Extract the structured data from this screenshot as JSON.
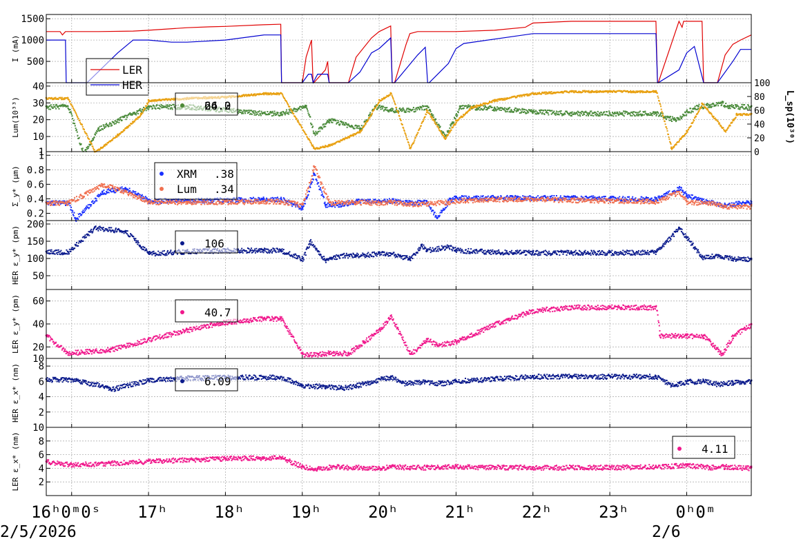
{
  "colors": {
    "ler_red": "#e00000",
    "her_blue": "#0000d0",
    "gold": "#e8a010",
    "green": "#4a8a3a",
    "xrm_blue": "#1a30ff",
    "lum_salmon": "#f07050",
    "navy": "#0a1a8c",
    "magenta": "#f0188c",
    "grid": "#b0b0b0"
  },
  "time_axis": {
    "ticks": [
      {
        "t": 0,
        "label": "16ʰ0ᵐ0ˢ"
      },
      {
        "t": 1,
        "label": "17ʰ"
      },
      {
        "t": 2,
        "label": "18ʰ"
      },
      {
        "t": 3,
        "label": "19ʰ"
      },
      {
        "t": 4,
        "label": "20ʰ"
      },
      {
        "t": 5,
        "label": "21ʰ"
      },
      {
        "t": 6,
        "label": "22ʰ"
      },
      {
        "t": 7,
        "label": "23ʰ"
      },
      {
        "t": 8,
        "label": "0ʰ0ᵐ"
      }
    ],
    "date_left": "2/5/2026",
    "date_right": "2/6",
    "t_range": [
      -0.33,
      8.84
    ]
  },
  "chart_data": [
    {
      "type": "line",
      "ylabel": "I (mA)",
      "yticks": [
        500,
        1000,
        1500
      ],
      "ylim": [
        0,
        1600
      ],
      "legend": [
        {
          "name": "LER",
          "color": "#e00000"
        },
        {
          "name": "HER",
          "color": "#0000d0"
        }
      ],
      "series": [
        {
          "name": "LER",
          "color": "#e00000",
          "x": [
            -0.33,
            -0.15,
            -0.12,
            -0.08,
            0.3,
            0.35,
            0.8,
            1.0,
            1.5,
            1.8,
            2.0,
            2.5,
            2.7,
            2.72,
            2.73,
            3.0,
            3.05,
            3.12,
            3.14,
            3.15,
            3.3,
            3.33,
            3.35,
            3.36,
            3.6,
            3.7,
            3.9,
            4.0,
            4.15,
            4.17,
            4.2,
            4.35,
            4.4,
            4.5,
            4.6,
            4.63,
            4.65,
            5.0,
            5.5,
            5.9,
            6.0,
            6.5,
            7.0,
            7.5,
            7.6,
            7.62,
            7.63,
            7.9,
            7.94,
            7.96,
            8.2,
            8.22,
            8.4,
            8.5,
            8.6,
            8.7,
            8.84
          ],
          "y": [
            1200,
            1200,
            1120,
            1200,
            1200,
            1200,
            1210,
            1230,
            1290,
            1310,
            1320,
            1360,
            1370,
            1370,
            0,
            0,
            600,
            1000,
            0,
            0,
            300,
            500,
            0,
            0,
            0,
            600,
            1050,
            1200,
            1330,
            0,
            0,
            900,
            1150,
            1200,
            1200,
            1200,
            1200,
            1200,
            1230,
            1300,
            1400,
            1440,
            1440,
            1440,
            1440,
            0,
            0,
            1440,
            1300,
            1440,
            1440,
            0,
            0,
            650,
            900,
            1000,
            1120
          ]
        },
        {
          "name": "HER",
          "color": "#0000d0",
          "x": [
            -0.33,
            -0.08,
            -0.07,
            0.2,
            0.6,
            0.8,
            1.0,
            1.3,
            1.5,
            2.0,
            2.5,
            2.72,
            2.73,
            3.0,
            3.08,
            3.12,
            3.14,
            3.2,
            3.33,
            3.35,
            3.6,
            3.75,
            3.9,
            4.0,
            4.15,
            4.17,
            4.2,
            4.5,
            4.6,
            4.63,
            4.65,
            4.9,
            5.0,
            5.1,
            6.0,
            7.0,
            7.6,
            7.62,
            7.63,
            7.9,
            8.0,
            8.1,
            8.22,
            8.4,
            8.6,
            8.7,
            8.84
          ],
          "y": [
            1000,
            1000,
            0,
            0,
            700,
            1000,
            1000,
            950,
            950,
            1000,
            1120,
            1120,
            0,
            0,
            200,
            200,
            0,
            200,
            200,
            0,
            0,
            250,
            700,
            800,
            1050,
            0,
            0,
            650,
            830,
            0,
            0,
            450,
            800,
            920,
            1150,
            1150,
            1150,
            0,
            0,
            300,
            700,
            850,
            0,
            0,
            500,
            780,
            780
          ]
        }
      ]
    },
    {
      "type": "scatter",
      "ylabel": "Lum(10³³)",
      "ylabel_right": "L_sp(10³⁰)",
      "yticks": [
        1,
        10,
        20,
        30,
        40
      ],
      "ylim": [
        1,
        42
      ],
      "yticks_right": [
        0,
        20,
        40,
        60,
        80,
        100
      ],
      "ylim_right": [
        0,
        100
      ],
      "legend": [
        {
          "name": "",
          "value": "66.0",
          "color": "#e8a010"
        },
        {
          "name": "",
          "value": "24.2",
          "color": "#4a8a3a"
        }
      ],
      "series": [
        {
          "name": "",
          "color": "#4a8a3a",
          "axis": "left",
          "x": [
            -0.33,
            -0.05,
            0.15,
            0.35,
            0.6,
            1.0,
            1.5,
            2.0,
            2.5,
            2.72,
            3.05,
            3.15,
            3.35,
            3.75,
            3.95,
            4.15,
            4.4,
            4.62,
            4.85,
            5.05,
            5.5,
            6.0,
            6.5,
            7.0,
            7.6,
            7.85,
            8.0,
            8.15,
            8.45,
            8.55,
            8.84
          ],
          "y": [
            28,
            28,
            0,
            15,
            20,
            28,
            28,
            26,
            24,
            24,
            28,
            12,
            20,
            15,
            28,
            26,
            26,
            28,
            10,
            28,
            27,
            25,
            24,
            24,
            24,
            20,
            25,
            28,
            30,
            28,
            28
          ]
        },
        {
          "name": "",
          "color": "#e8a010",
          "axis": "right",
          "x": [
            -0.33,
            -0.05,
            0.3,
            0.6,
            0.9,
            1.0,
            1.5,
            2.0,
            2.5,
            2.72,
            3.15,
            3.35,
            3.75,
            4.0,
            4.15,
            4.4,
            4.62,
            4.85,
            5.0,
            5.2,
            5.5,
            6.0,
            6.5,
            7.0,
            7.6,
            7.8,
            8.0,
            8.2,
            8.5,
            8.65,
            8.84
          ],
          "y": [
            78,
            78,
            0,
            25,
            55,
            75,
            78,
            80,
            85,
            85,
            5,
            10,
            30,
            75,
            85,
            5,
            60,
            20,
            45,
            65,
            75,
            85,
            88,
            88,
            88,
            5,
            30,
            70,
            30,
            55,
            55
          ]
        }
      ]
    },
    {
      "type": "scatter",
      "ylabel": "Σ_y* (μm)",
      "yticks": [
        0.2,
        0.4,
        0.6,
        0.8,
        1.0
      ],
      "ylim": [
        0.1,
        1.05
      ],
      "legend": [
        {
          "name": "XRM",
          "value": ".38",
          "color": "#1a30ff"
        },
        {
          "name": "Lum",
          "value": ".34",
          "color": "#f07050"
        }
      ],
      "series": [
        {
          "name": "XRM",
          "color": "#1a30ff",
          "x": [
            -0.33,
            -0.05,
            0.05,
            0.4,
            0.7,
            1.0,
            1.5,
            2.0,
            2.5,
            2.72,
            3.0,
            3.15,
            3.3,
            3.5,
            3.7,
            4.0,
            4.15,
            4.4,
            4.62,
            4.75,
            4.9,
            5.0,
            5.5,
            6.0,
            6.5,
            7.0,
            7.6,
            7.9,
            8.0,
            8.2,
            8.5,
            8.84
          ],
          "y": [
            0.35,
            0.35,
            0.13,
            0.5,
            0.55,
            0.38,
            0.38,
            0.39,
            0.4,
            0.4,
            0.28,
            0.75,
            0.32,
            0.33,
            0.37,
            0.38,
            0.38,
            0.35,
            0.36,
            0.14,
            0.38,
            0.42,
            0.42,
            0.42,
            0.42,
            0.41,
            0.4,
            0.55,
            0.45,
            0.38,
            0.32,
            0.36
          ]
        },
        {
          "name": "Lum",
          "color": "#f07050",
          "x": [
            -0.33,
            -0.05,
            0.4,
            0.7,
            1.0,
            1.5,
            2.0,
            2.5,
            2.72,
            3.0,
            3.15,
            3.35,
            3.7,
            4.0,
            4.15,
            4.4,
            4.62,
            4.9,
            5.0,
            5.5,
            6.0,
            6.5,
            7.0,
            7.6,
            7.9,
            8.0,
            8.3,
            8.5,
            8.84
          ],
          "y": [
            0.35,
            0.35,
            0.6,
            0.5,
            0.36,
            0.36,
            0.36,
            0.37,
            0.37,
            0.32,
            0.85,
            0.35,
            0.36,
            0.35,
            0.36,
            0.33,
            0.34,
            0.36,
            0.38,
            0.4,
            0.4,
            0.39,
            0.38,
            0.37,
            0.5,
            0.36,
            0.35,
            0.3,
            0.3
          ]
        }
      ]
    },
    {
      "type": "scatter",
      "ylabel": "HER ε_y* (pm)",
      "yticks": [
        50,
        100,
        150,
        200
      ],
      "ylim": [
        10,
        210
      ],
      "legend": [
        {
          "name": "",
          "value": "106",
          "color": "#0a1a8c"
        }
      ],
      "series": [
        {
          "name": "",
          "color": "#0a1a8c",
          "x": [
            -0.33,
            -0.05,
            0.3,
            0.7,
            1.0,
            1.5,
            2.0,
            2.5,
            2.72,
            3.0,
            3.1,
            3.3,
            3.5,
            3.7,
            4.0,
            4.15,
            4.4,
            4.55,
            4.62,
            4.9,
            5.0,
            5.5,
            6.0,
            6.5,
            7.0,
            7.6,
            7.9,
            8.0,
            8.2,
            8.4,
            8.6,
            8.84
          ],
          "y": [
            120,
            120,
            190,
            180,
            115,
            122,
            125,
            125,
            125,
            100,
            150,
            95,
            110,
            110,
            115,
            115,
            100,
            140,
            125,
            135,
            125,
            120,
            118,
            118,
            118,
            120,
            190,
            160,
            105,
            110,
            100,
            100
          ]
        }
      ]
    },
    {
      "type": "scatter",
      "ylabel": "LER ε_y* (pm)",
      "yticks": [
        10,
        20,
        40,
        60
      ],
      "ylim": [
        10,
        70
      ],
      "legend": [
        {
          "name": "",
          "value": "40.7",
          "color": "#f0188c"
        }
      ],
      "series": [
        {
          "name": "",
          "color": "#f0188c",
          "x": [
            -0.33,
            -0.05,
            0.5,
            1.0,
            1.5,
            2.0,
            2.5,
            2.72,
            3.0,
            3.2,
            3.35,
            3.6,
            3.8,
            4.0,
            4.15,
            4.4,
            4.62,
            4.75,
            5.0,
            5.5,
            6.0,
            6.5,
            7.0,
            7.6,
            7.65,
            8.0,
            8.22,
            8.45,
            8.6,
            8.84
          ],
          "y": [
            30,
            15,
            18,
            27,
            35,
            42,
            45,
            45,
            14,
            14,
            15,
            15,
            25,
            35,
            47,
            14,
            27,
            22,
            25,
            40,
            52,
            55,
            55,
            55,
            30,
            30,
            30,
            14,
            30,
            40
          ]
        }
      ]
    },
    {
      "type": "scatter",
      "ylabel": "HER ε_x* (nm)",
      "yticks": [
        2,
        4,
        6,
        8
      ],
      "ylim": [
        0,
        9
      ],
      "legend": [
        {
          "name": "",
          "value": "6.09",
          "color": "#0a1a8c"
        }
      ],
      "series": [
        {
          "name": "",
          "color": "#0a1a8c",
          "x": [
            -0.33,
            -0.05,
            0.4,
            0.5,
            1.0,
            1.5,
            2.0,
            2.5,
            2.72,
            3.0,
            3.3,
            3.5,
            3.7,
            4.0,
            4.15,
            4.3,
            4.6,
            4.8,
            5.0,
            5.5,
            6.0,
            6.5,
            7.0,
            7.6,
            7.8,
            8.0,
            8.22,
            8.4,
            8.6,
            8.84
          ],
          "y": [
            6.3,
            6.3,
            5.5,
            5.0,
            6.2,
            6.5,
            6.6,
            6.6,
            6.6,
            5.5,
            5.4,
            5.2,
            5.5,
            6.3,
            6.6,
            5.8,
            6.0,
            5.8,
            6.1,
            6.4,
            6.7,
            6.7,
            6.7,
            6.7,
            5.5,
            6.0,
            6.1,
            5.7,
            5.9,
            6.1
          ]
        }
      ]
    },
    {
      "type": "scatter",
      "ylabel": "LER ε_x* (nm)",
      "yticks": [
        2,
        4,
        6,
        8,
        10
      ],
      "ylim": [
        0,
        10
      ],
      "legend": [
        {
          "name": "",
          "value": "4.11",
          "color": "#f0188c"
        }
      ],
      "series": [
        {
          "name": "",
          "color": "#f0188c",
          "x": [
            -0.33,
            0.0,
            0.5,
            1.0,
            1.5,
            2.0,
            2.5,
            2.72,
            3.0,
            3.2,
            3.4,
            3.6,
            3.8,
            4.0,
            4.15,
            4.4,
            4.62,
            5.0,
            5.5,
            6.0,
            6.5,
            7.0,
            7.6,
            8.0,
            8.3,
            8.5,
            8.84
          ],
          "y": [
            5.0,
            4.6,
            4.8,
            5.1,
            5.3,
            5.5,
            5.6,
            5.6,
            4.3,
            4.0,
            4.3,
            4.2,
            4.2,
            4.1,
            4.3,
            4.2,
            4.2,
            4.3,
            4.2,
            4.2,
            4.2,
            4.2,
            4.3,
            4.5,
            4.2,
            4.3,
            4.1
          ]
        }
      ]
    }
  ]
}
